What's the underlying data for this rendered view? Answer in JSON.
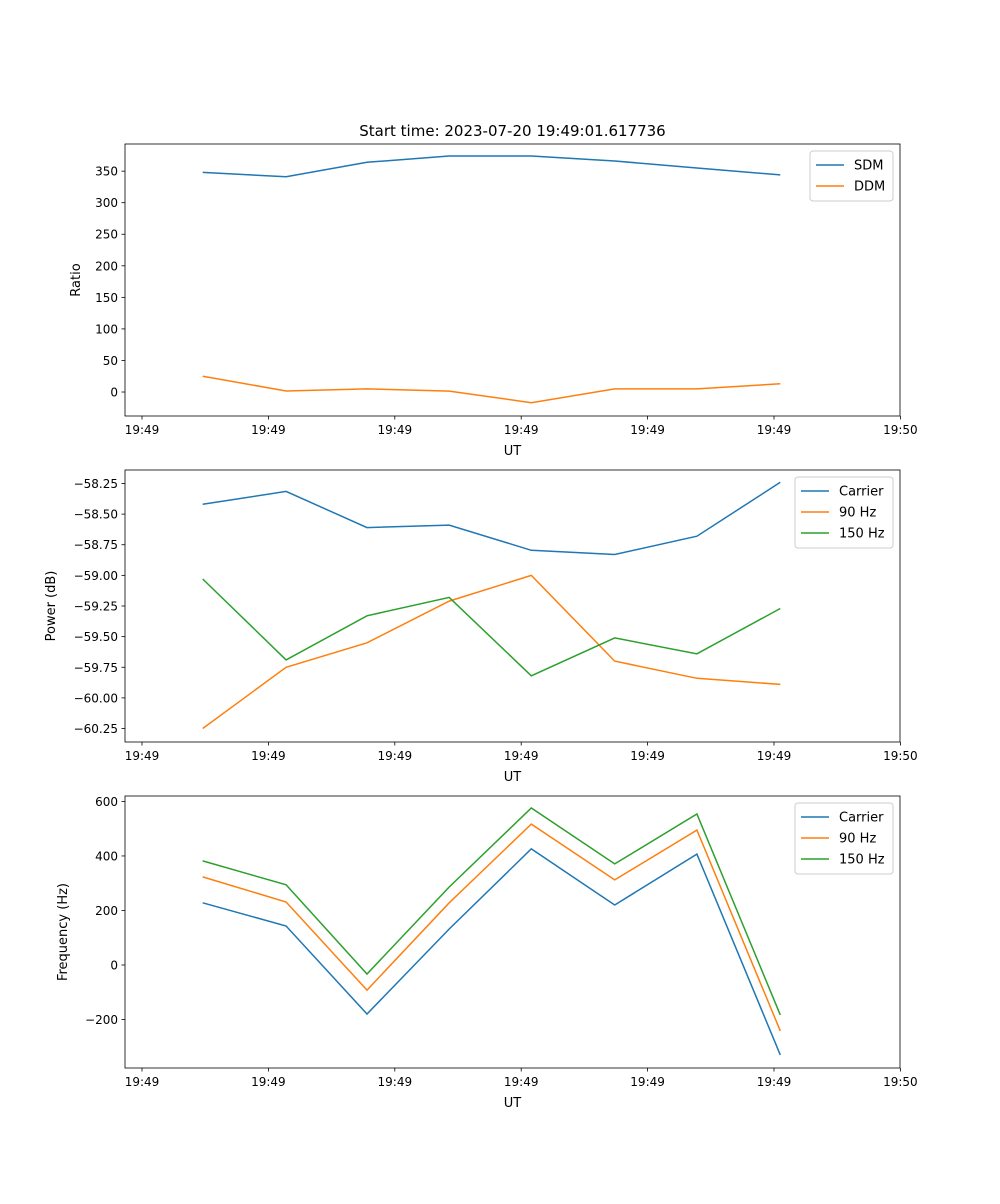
{
  "title": "Start time: 2023-07-20 19:49:01.617736",
  "chart_data": [
    {
      "type": "line",
      "xlabel": "UT",
      "ylabel": "Ratio",
      "x_seconds": [
        4.8,
        11.4,
        17.8,
        24.3,
        30.8,
        37.4,
        43.9,
        50.5
      ],
      "xlim": [
        -1.3,
        60
      ],
      "xticks": [
        0,
        10,
        20,
        30,
        40,
        50,
        60
      ],
      "xtick_labels": [
        "19:49",
        "19:49",
        "19:49",
        "19:49",
        "19:49",
        "19:49",
        "19:50"
      ],
      "ylim": [
        -38,
        393
      ],
      "yticks": [
        0,
        50,
        100,
        150,
        200,
        250,
        300,
        350
      ],
      "legend": "top-right",
      "series": [
        {
          "name": "SDM",
          "color": "#1f77b4",
          "values": [
            348,
            341,
            364,
            374,
            374,
            366,
            355,
            344
          ]
        },
        {
          "name": "DDM",
          "color": "#ff7f0e",
          "values": [
            25,
            1.6,
            5,
            1.5,
            -17,
            5,
            5,
            13
          ]
        }
      ]
    },
    {
      "type": "line",
      "xlabel": "UT",
      "ylabel": "Power (dB)",
      "x_seconds": [
        4.8,
        11.4,
        17.8,
        24.3,
        30.8,
        37.4,
        43.9,
        50.5
      ],
      "xlim": [
        -1.3,
        60
      ],
      "xticks": [
        0,
        10,
        20,
        30,
        40,
        50,
        60
      ],
      "xtick_labels": [
        "19:49",
        "19:49",
        "19:49",
        "19:49",
        "19:49",
        "19:49",
        "19:50"
      ],
      "ylim": [
        -60.36,
        -58.14
      ],
      "yticks": [
        -60.25,
        -60.0,
        -59.75,
        -59.5,
        -59.25,
        -59.0,
        -58.75,
        -58.5,
        -58.25
      ],
      "ytick_labels": [
        "−60.25",
        "−60.00",
        "−59.75",
        "−59.50",
        "−59.25",
        "−59.00",
        "−58.75",
        "−58.50",
        "−58.25"
      ],
      "legend": "top-right",
      "series": [
        {
          "name": "Carrier",
          "color": "#1f77b4",
          "values": [
            -58.42,
            -58.315,
            -58.61,
            -58.59,
            -58.795,
            -58.83,
            -58.68,
            -58.24
          ]
        },
        {
          "name": "90 Hz",
          "color": "#ff7f0e",
          "values": [
            -60.25,
            -59.75,
            -59.55,
            -59.21,
            -59.0,
            -59.7,
            -59.84,
            -59.89
          ]
        },
        {
          "name": "150 Hz",
          "color": "#2ca02c",
          "values": [
            -59.03,
            -59.69,
            -59.33,
            -59.18,
            -59.82,
            -59.51,
            -59.64,
            -59.27
          ]
        }
      ]
    },
    {
      "type": "line",
      "xlabel": "UT",
      "ylabel": "Frequency (Hz)",
      "x_seconds": [
        4.8,
        11.4,
        17.8,
        24.3,
        30.8,
        37.4,
        43.9,
        50.5
      ],
      "xlim": [
        -1.3,
        60
      ],
      "xticks": [
        0,
        10,
        20,
        30,
        40,
        50,
        60
      ],
      "xtick_labels": [
        "19:49",
        "19:49",
        "19:49",
        "19:49",
        "19:49",
        "19:49",
        "19:50"
      ],
      "ylim": [
        -378,
        620
      ],
      "yticks": [
        -200,
        0,
        200,
        400,
        600
      ],
      "ytick_labels": [
        "−200",
        "0",
        "200",
        "400",
        "600"
      ],
      "legend": "top-right",
      "series": [
        {
          "name": "Carrier",
          "color": "#1f77b4",
          "values": [
            228,
            143,
            -180,
            132,
            426,
            220,
            407,
            -330
          ]
        },
        {
          "name": "90 Hz",
          "color": "#ff7f0e",
          "values": [
            323,
            231,
            -92,
            228,
            517,
            312,
            495,
            -242
          ]
        },
        {
          "name": "150 Hz",
          "color": "#2ca02c",
          "values": [
            382,
            294,
            -33,
            286,
            576,
            371,
            554,
            -183
          ]
        }
      ]
    }
  ]
}
